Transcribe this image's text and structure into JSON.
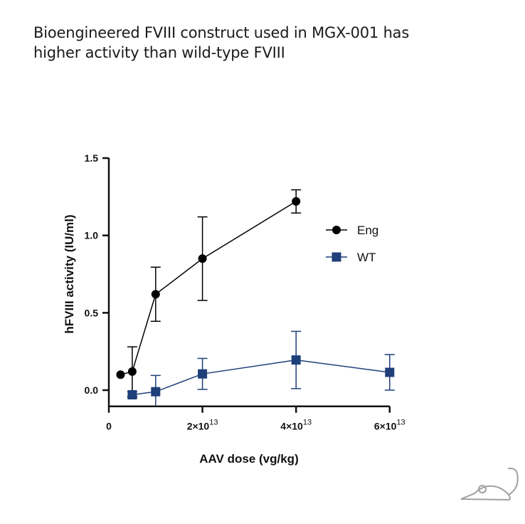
{
  "title_line1": "Bioengineered FVIII construct used in MGX-001 has",
  "title_line2": "higher activity than wild-type FVIII",
  "chart_data": {
    "type": "line",
    "xlabel": "AAV dose (vg/kg)",
    "ylabel": "hFVIII activity (IU/ml)",
    "xlim": [
      0,
      60000000000000.0
    ],
    "ylim": [
      -0.1,
      1.5
    ],
    "x_ticks": [
      {
        "value": 0,
        "label": "0"
      },
      {
        "value": 20000000000000.0,
        "base": "2×10",
        "exp": "13"
      },
      {
        "value": 40000000000000.0,
        "base": "4×10",
        "exp": "13"
      },
      {
        "value": 60000000000000.0,
        "base": "6×10",
        "exp": "13"
      }
    ],
    "y_ticks": [
      {
        "value": 0,
        "label": "0.0"
      },
      {
        "value": 0.5,
        "label": "0.5"
      },
      {
        "value": 1.0,
        "label": "1.0"
      },
      {
        "value": 1.5,
        "label": "1.5"
      }
    ],
    "legend_position": "right",
    "series": [
      {
        "name": "Eng",
        "color": "#000000",
        "marker": "circle",
        "x": [
          2500000000000.0,
          5000000000000.0,
          10000000000000.0,
          20000000000000.0,
          40000000000000.0
        ],
        "y": [
          0.1,
          0.12,
          0.62,
          0.85,
          1.22
        ],
        "err": [
          0,
          0.16,
          0.175,
          0.27,
          0.075
        ]
      },
      {
        "name": "WT",
        "color": "#1f3f7a",
        "marker": "square",
        "x": [
          5000000000000.0,
          10000000000000.0,
          20000000000000.0,
          40000000000000.0,
          60000000000000.0
        ],
        "y": [
          -0.03,
          -0.01,
          0.105,
          0.195,
          0.115
        ],
        "err": [
          0.02,
          0.105,
          0.1,
          0.185,
          0.115
        ]
      }
    ]
  },
  "icons": {
    "mouse": "mouse-icon"
  }
}
